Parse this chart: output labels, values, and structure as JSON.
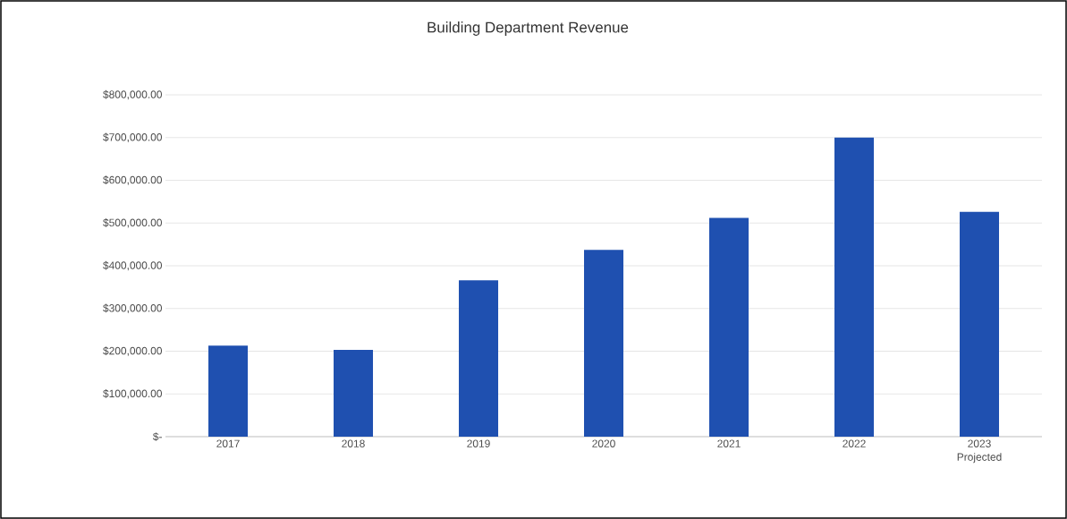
{
  "chart_data": {
    "type": "bar",
    "title": "Building Department Revenue",
    "categories": [
      "2017",
      "2018",
      "2019",
      "2020",
      "2021",
      "2022",
      "2023 Projected"
    ],
    "values": [
      213000,
      203000,
      366000,
      437000,
      512000,
      700000,
      526000
    ],
    "color": "#1f50b0",
    "ylim": [
      0,
      800000
    ],
    "yticks": [
      {
        "value": 0,
        "label": "$-"
      },
      {
        "value": 100000,
        "label": "$100,000.00"
      },
      {
        "value": 200000,
        "label": "$200,000.00"
      },
      {
        "value": 300000,
        "label": "$300,000.00"
      },
      {
        "value": 400000,
        "label": "$400,000.00"
      },
      {
        "value": 500000,
        "label": "$500,000.00"
      },
      {
        "value": 600000,
        "label": "$600,000.00"
      },
      {
        "value": 700000,
        "label": "$700,000.00"
      },
      {
        "value": 800000,
        "label": "$800,000.00"
      }
    ],
    "grid": "y"
  }
}
